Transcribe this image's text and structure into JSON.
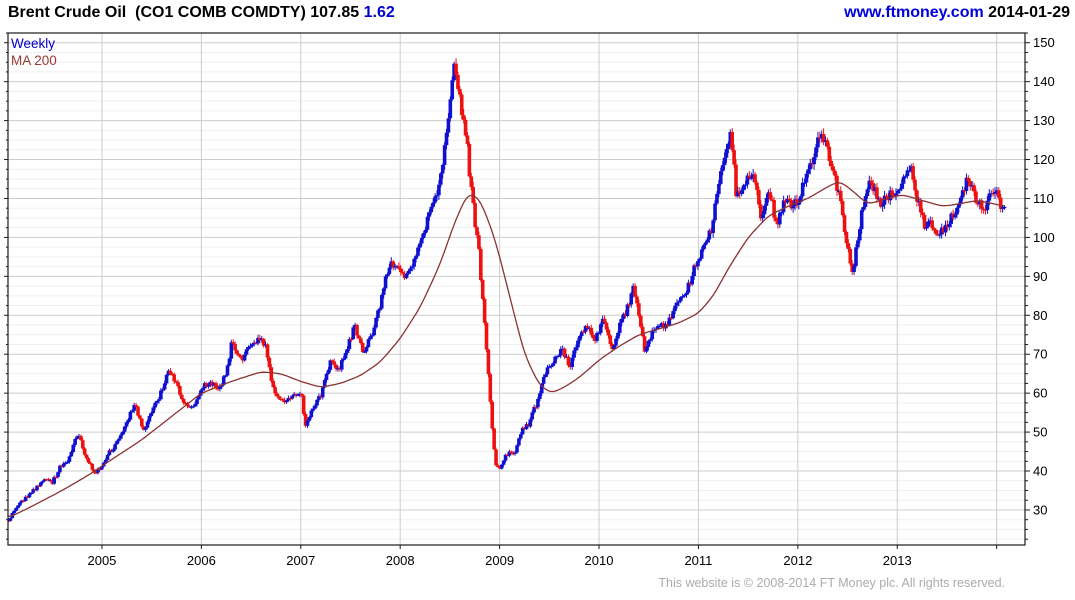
{
  "header": {
    "title_main": "Brent Crude Oil  (CO1 COMB COMDTY) ",
    "price": "107.85",
    "change": " 1.62",
    "watermark": "www.ftmoney.com",
    "date": " 2014-01-29"
  },
  "legend": {
    "weekly_label": "Weekly",
    "ma_label": "MA 200"
  },
  "footer": {
    "copyright": "This website is © 2008-2014 FT Money plc. All rights reserved."
  },
  "colors": {
    "up_candle": "#1010d0",
    "down_candle": "#ee1111",
    "ma_line": "#8b3232",
    "accent_blue": "#0000cc",
    "grid_major": "#cccccc",
    "grid_minor": "#efefef",
    "axis": "#1a1a1a",
    "footer_text": "#ababab",
    "background": "#ffffff"
  },
  "chart_data": {
    "type": "candlestick",
    "title": "Brent Crude Oil (CO1 COMB COMDTY) 107.85 1.62",
    "interval": "weekly",
    "legend_position": "top-left",
    "grid": {
      "horizontal_major_step": 10,
      "horizontal_minor_step": 2.5,
      "vertical": "yearly"
    },
    "x_axis": {
      "domain": [
        2004.055,
        2014.285
      ],
      "year_ticks": [
        2005,
        2006,
        2007,
        2008,
        2009,
        2010,
        2011,
        2012,
        2013,
        2014
      ],
      "year_labels": [
        "2005",
        "2006",
        "2007",
        "2008",
        "2009",
        "2010",
        "2011",
        "2012",
        "2013"
      ]
    },
    "y_axis": {
      "position": "right",
      "domain": [
        21,
        152.5
      ],
      "ticks": [
        30,
        40,
        50,
        60,
        70,
        80,
        90,
        100,
        110,
        120,
        130,
        140,
        150
      ]
    },
    "series": [
      {
        "name": "Weekly",
        "type": "candlestick",
        "color_up": "#1010d0",
        "color_down": "#ee1111",
        "last_close": 107.85,
        "close_anchors": [
          [
            2004.06,
            27.5
          ],
          [
            2004.15,
            31
          ],
          [
            2004.25,
            33.5
          ],
          [
            2004.33,
            35.5
          ],
          [
            2004.42,
            38
          ],
          [
            2004.5,
            37
          ],
          [
            2004.58,
            41
          ],
          [
            2004.67,
            43
          ],
          [
            2004.76,
            50
          ],
          [
            2004.83,
            44
          ],
          [
            2004.92,
            39.5
          ],
          [
            2005.0,
            41
          ],
          [
            2005.08,
            45
          ],
          [
            2005.17,
            48
          ],
          [
            2005.27,
            54
          ],
          [
            2005.33,
            57
          ],
          [
            2005.42,
            50
          ],
          [
            2005.5,
            55.5
          ],
          [
            2005.58,
            59
          ],
          [
            2005.68,
            66
          ],
          [
            2005.75,
            62
          ],
          [
            2005.83,
            57
          ],
          [
            2005.92,
            56
          ],
          [
            2006.0,
            61
          ],
          [
            2006.08,
            63
          ],
          [
            2006.17,
            61
          ],
          [
            2006.25,
            65
          ],
          [
            2006.31,
            73.5
          ],
          [
            2006.4,
            68.5
          ],
          [
            2006.5,
            72
          ],
          [
            2006.58,
            74
          ],
          [
            2006.65,
            72
          ],
          [
            2006.73,
            60
          ],
          [
            2006.83,
            57.5
          ],
          [
            2006.92,
            60
          ],
          [
            2007.0,
            60.5
          ],
          [
            2007.05,
            51.5
          ],
          [
            2007.13,
            57
          ],
          [
            2007.21,
            60
          ],
          [
            2007.29,
            68
          ],
          [
            2007.38,
            66
          ],
          [
            2007.46,
            70.5
          ],
          [
            2007.54,
            77.5
          ],
          [
            2007.63,
            70.5
          ],
          [
            2007.71,
            75
          ],
          [
            2007.79,
            82
          ],
          [
            2007.88,
            92
          ],
          [
            2007.96,
            94
          ],
          [
            2008.04,
            89
          ],
          [
            2008.13,
            94
          ],
          [
            2008.21,
            100
          ],
          [
            2008.29,
            105
          ],
          [
            2008.38,
            112
          ],
          [
            2008.46,
            125
          ],
          [
            2008.5,
            135
          ],
          [
            2008.54,
            146
          ],
          [
            2008.58,
            140
          ],
          [
            2008.63,
            131
          ],
          [
            2008.67,
            125
          ],
          [
            2008.71,
            113
          ],
          [
            2008.75,
            104
          ],
          [
            2008.79,
            97
          ],
          [
            2008.83,
            84
          ],
          [
            2008.88,
            67
          ],
          [
            2008.92,
            53
          ],
          [
            2008.96,
            42
          ],
          [
            2009.0,
            40
          ],
          [
            2009.04,
            43
          ],
          [
            2009.1,
            45
          ],
          [
            2009.15,
            44
          ],
          [
            2009.21,
            50
          ],
          [
            2009.29,
            52
          ],
          [
            2009.38,
            58
          ],
          [
            2009.46,
            65
          ],
          [
            2009.54,
            68
          ],
          [
            2009.63,
            71
          ],
          [
            2009.71,
            67
          ],
          [
            2009.79,
            74
          ],
          [
            2009.88,
            77
          ],
          [
            2009.96,
            74
          ],
          [
            2010.04,
            79
          ],
          [
            2010.13,
            71
          ],
          [
            2010.21,
            78
          ],
          [
            2010.29,
            82
          ],
          [
            2010.35,
            87
          ],
          [
            2010.42,
            78
          ],
          [
            2010.46,
            71
          ],
          [
            2010.54,
            76
          ],
          [
            2010.63,
            77
          ],
          [
            2010.71,
            79
          ],
          [
            2010.79,
            83
          ],
          [
            2010.88,
            86
          ],
          [
            2010.96,
            92
          ],
          [
            2011.04,
            97
          ],
          [
            2011.13,
            102
          ],
          [
            2011.21,
            114
          ],
          [
            2011.29,
            124
          ],
          [
            2011.33,
            126
          ],
          [
            2011.38,
            111
          ],
          [
            2011.46,
            114
          ],
          [
            2011.54,
            117
          ],
          [
            2011.58,
            112
          ],
          [
            2011.63,
            105
          ],
          [
            2011.71,
            112
          ],
          [
            2011.79,
            103
          ],
          [
            2011.88,
            110
          ],
          [
            2011.96,
            108
          ],
          [
            2012.04,
            112
          ],
          [
            2012.13,
            119
          ],
          [
            2012.21,
            125
          ],
          [
            2012.27,
            125
          ],
          [
            2012.33,
            119
          ],
          [
            2012.42,
            110
          ],
          [
            2012.5,
            97
          ],
          [
            2012.55,
            91
          ],
          [
            2012.63,
            104
          ],
          [
            2012.71,
            115
          ],
          [
            2012.77,
            112
          ],
          [
            2012.83,
            109
          ],
          [
            2012.92,
            111
          ],
          [
            2013.0,
            111
          ],
          [
            2013.08,
            117
          ],
          [
            2013.13,
            118
          ],
          [
            2013.21,
            109
          ],
          [
            2013.29,
            102
          ],
          [
            2013.33,
            104
          ],
          [
            2013.42,
            101
          ],
          [
            2013.5,
            103
          ],
          [
            2013.58,
            107
          ],
          [
            2013.65,
            110
          ],
          [
            2013.71,
            116
          ],
          [
            2013.79,
            110
          ],
          [
            2013.88,
            107
          ],
          [
            2013.92,
            110
          ],
          [
            2013.96,
            112
          ],
          [
            2014.0,
            111
          ],
          [
            2014.04,
            107
          ],
          [
            2014.08,
            107.85
          ]
        ]
      },
      {
        "name": "MA 200",
        "type": "line",
        "color": "#8b3232",
        "values": [
          [
            2004.06,
            28
          ],
          [
            2004.3,
            31
          ],
          [
            2004.6,
            35
          ],
          [
            2004.9,
            39.5
          ],
          [
            2005.1,
            43
          ],
          [
            2005.4,
            48
          ],
          [
            2005.7,
            54
          ],
          [
            2006.0,
            60
          ],
          [
            2006.3,
            63
          ],
          [
            2006.6,
            65.5
          ],
          [
            2006.8,
            65
          ],
          [
            2007.0,
            63
          ],
          [
            2007.2,
            61.5
          ],
          [
            2007.4,
            62.5
          ],
          [
            2007.6,
            64.5
          ],
          [
            2007.8,
            68
          ],
          [
            2008.0,
            74
          ],
          [
            2008.2,
            82
          ],
          [
            2008.4,
            93
          ],
          [
            2008.55,
            104
          ],
          [
            2008.68,
            111.5
          ],
          [
            2008.8,
            110
          ],
          [
            2008.95,
            100
          ],
          [
            2009.1,
            85
          ],
          [
            2009.25,
            70
          ],
          [
            2009.4,
            62
          ],
          [
            2009.52,
            60
          ],
          [
            2009.65,
            61.5
          ],
          [
            2009.8,
            64
          ],
          [
            2010.0,
            68.5
          ],
          [
            2010.2,
            72
          ],
          [
            2010.4,
            75
          ],
          [
            2010.6,
            76.5
          ],
          [
            2010.8,
            78
          ],
          [
            2011.0,
            80.5
          ],
          [
            2011.15,
            85
          ],
          [
            2011.3,
            92
          ],
          [
            2011.5,
            100
          ],
          [
            2011.7,
            105.5
          ],
          [
            2011.9,
            108
          ],
          [
            2012.1,
            110
          ],
          [
            2012.3,
            113
          ],
          [
            2012.42,
            114.5
          ],
          [
            2012.55,
            112
          ],
          [
            2012.7,
            108.5
          ],
          [
            2012.9,
            110
          ],
          [
            2013.05,
            111
          ],
          [
            2013.25,
            109.5
          ],
          [
            2013.45,
            108
          ],
          [
            2013.6,
            108.5
          ],
          [
            2013.8,
            109.5
          ],
          [
            2014.0,
            108.5
          ],
          [
            2014.13,
            107.5
          ]
        ]
      }
    ]
  }
}
